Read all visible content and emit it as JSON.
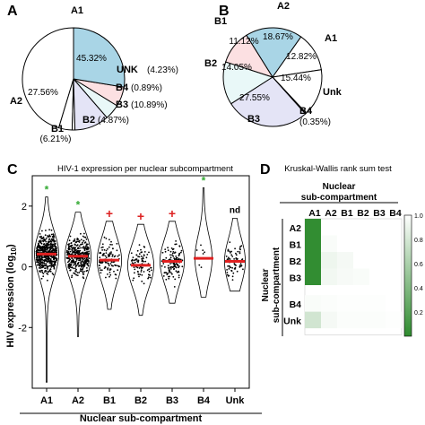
{
  "panel_letters": [
    "A",
    "B",
    "C",
    "D"
  ],
  "chart_data": [
    {
      "panel": "A",
      "type": "pie",
      "slices": [
        {
          "label": "A1",
          "value_label": "45.32%",
          "value": 45.32,
          "color": "#ffffff"
        },
        {
          "label": "UNK",
          "value_label": "(4.23%)",
          "value": 4.23,
          "color": "#ffffff"
        },
        {
          "label": "B4",
          "value_label": "(0.89%)",
          "value": 0.89,
          "color": "#ffffff"
        },
        {
          "label": "B3",
          "value_label": "(10.89%)",
          "value": 10.89,
          "color": "#e4e4f6"
        },
        {
          "label": "B2",
          "value_label": "(4.87%)",
          "value": 4.87,
          "color": "#e9f8f8"
        },
        {
          "label": "B1",
          "value_label": "(6.21%)",
          "value": 6.21,
          "color": "#fce0e2"
        },
        {
          "label": "A2",
          "value_label": "27.56%",
          "value": 27.56,
          "color": "#a9d5e6"
        }
      ]
    },
    {
      "panel": "B",
      "type": "pie",
      "slices": [
        {
          "label": "A2",
          "value_label": "18.67%",
          "value": 18.67,
          "color": "#a9d5e6"
        },
        {
          "label": "A1",
          "value_label": "12.82%",
          "value": 12.82,
          "color": "#ffffff"
        },
        {
          "label": "Unk",
          "value_label": "15.44%",
          "value": 15.44,
          "color": "#ffffff"
        },
        {
          "label": "B4",
          "value_label": "(0.35%)",
          "value": 0.35,
          "color": "#ffffff"
        },
        {
          "label": "B3",
          "value_label": "27.55%",
          "value": 27.55,
          "color": "#e4e4f6"
        },
        {
          "label": "B2",
          "value_label": "14.05%",
          "value": 14.05,
          "color": "#e9f8f8"
        },
        {
          "label": "B1",
          "value_label": "11.12%",
          "value": 11.12,
          "color": "#fce0e2"
        }
      ]
    },
    {
      "panel": "C",
      "type": "violin",
      "title": "HIV-1 expression per nuclear subcompartment",
      "xlabel": "Nuclear sub-compartment",
      "ylabel": "HIV expression (log",
      "ylabel_sub": "10",
      "ylabel_close": ")",
      "categories": [
        "A1",
        "A2",
        "B1",
        "B2",
        "B3",
        "B4",
        "Unk"
      ],
      "medians": [
        0.42,
        0.35,
        0.22,
        0.05,
        0.18,
        0.28,
        0.18
      ],
      "ranges": [
        [
          -3.8,
          2.3
        ],
        [
          -2.3,
          1.8
        ],
        [
          -1.4,
          1.5
        ],
        [
          -1.6,
          1.4
        ],
        [
          -1.2,
          1.5
        ],
        [
          -1.0,
          2.6
        ],
        [
          -0.8,
          1.6
        ]
      ],
      "significance": [
        "*",
        "*",
        "+",
        "+",
        "+",
        "*",
        "nd"
      ],
      "significance_colors": [
        "#33aa33",
        "#33aa33",
        "#dd2222",
        "#dd2222",
        "#dd2222",
        "#33aa33",
        "#000000"
      ],
      "yticks": [
        -2,
        0,
        2
      ],
      "ylim": [
        -4,
        3
      ]
    },
    {
      "panel": "D",
      "type": "heatmap",
      "title": "Kruskal-Wallis rank sum test",
      "col_header": [
        "Nuclear",
        "sub-compartment"
      ],
      "row_header": [
        "Nuclear",
        "sub-compartment"
      ],
      "columns": [
        "A1",
        "A2",
        "B1",
        "B2",
        "B3",
        "B4"
      ],
      "rows": [
        "A2",
        "B1",
        "B2",
        "B3",
        "B4",
        "Unk"
      ],
      "values": [
        [
          0.02,
          null,
          null,
          null,
          null,
          null
        ],
        [
          0.02,
          0.97,
          null,
          null,
          null,
          null
        ],
        [
          0.02,
          0.92,
          0.95,
          null,
          null,
          null
        ],
        [
          0.02,
          0.94,
          0.96,
          0.97,
          null,
          null
        ],
        [
          0.97,
          0.98,
          0.99,
          0.99,
          0.99,
          null
        ],
        [
          0.78,
          0.95,
          0.98,
          0.98,
          0.98,
          0.99
        ]
      ],
      "colorbar_ticks": [
        "1.0",
        "0.8",
        "0.6",
        "0.4",
        "0.2"
      ],
      "color_low": "#2e8b2e",
      "color_high": "#ffffff"
    }
  ]
}
